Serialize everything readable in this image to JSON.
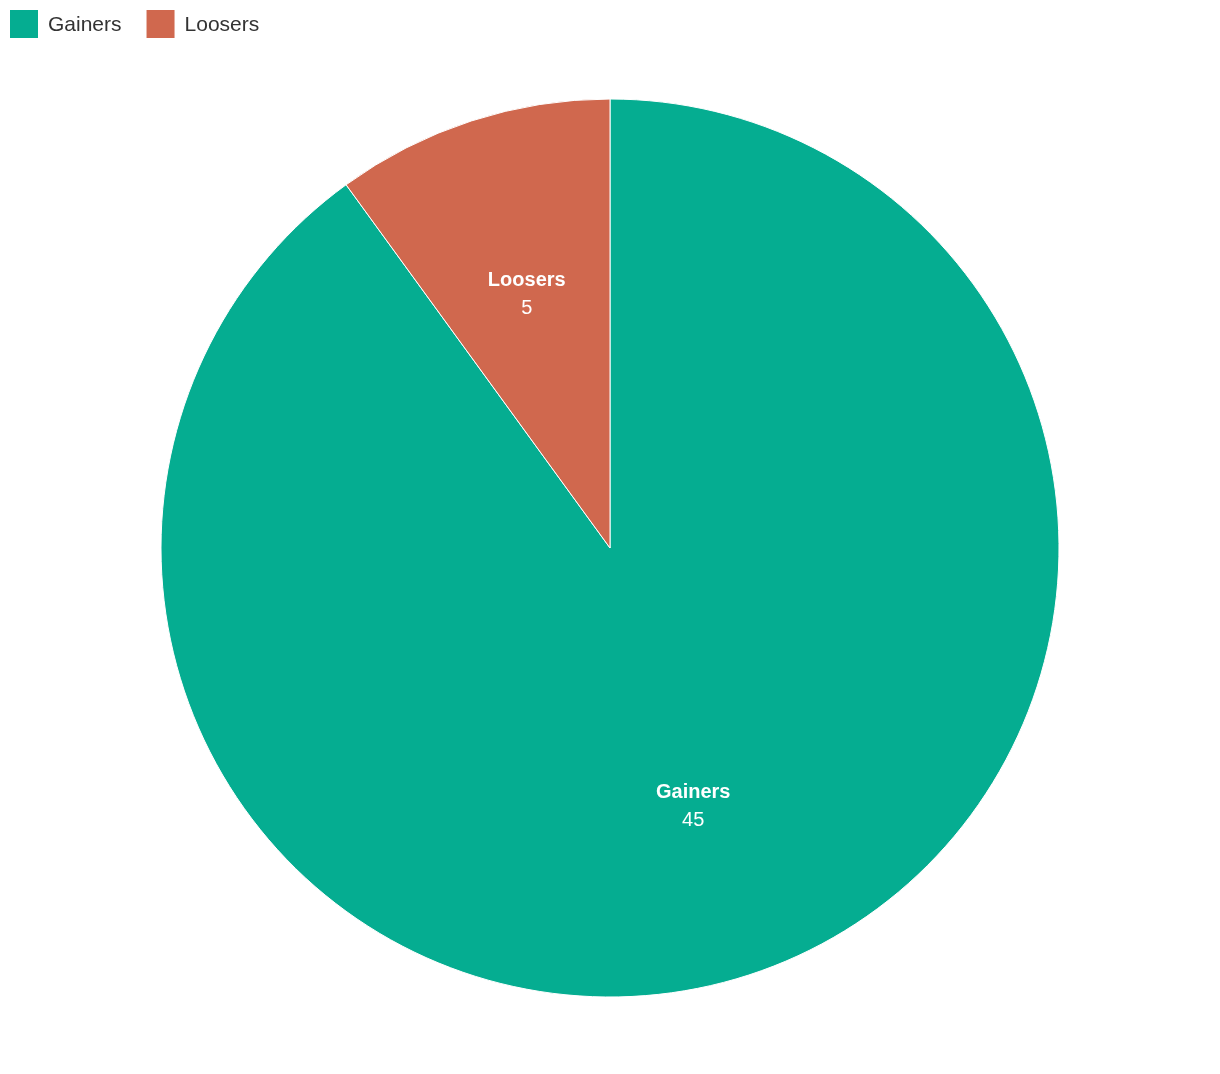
{
  "chart_data": {
    "type": "pie",
    "categories": [
      "Gainers",
      "Loosers"
    ],
    "values": [
      45,
      5
    ],
    "colors": [
      "#05ad91",
      "#d0684e"
    ],
    "data_labels": true,
    "legend": "top left"
  }
}
